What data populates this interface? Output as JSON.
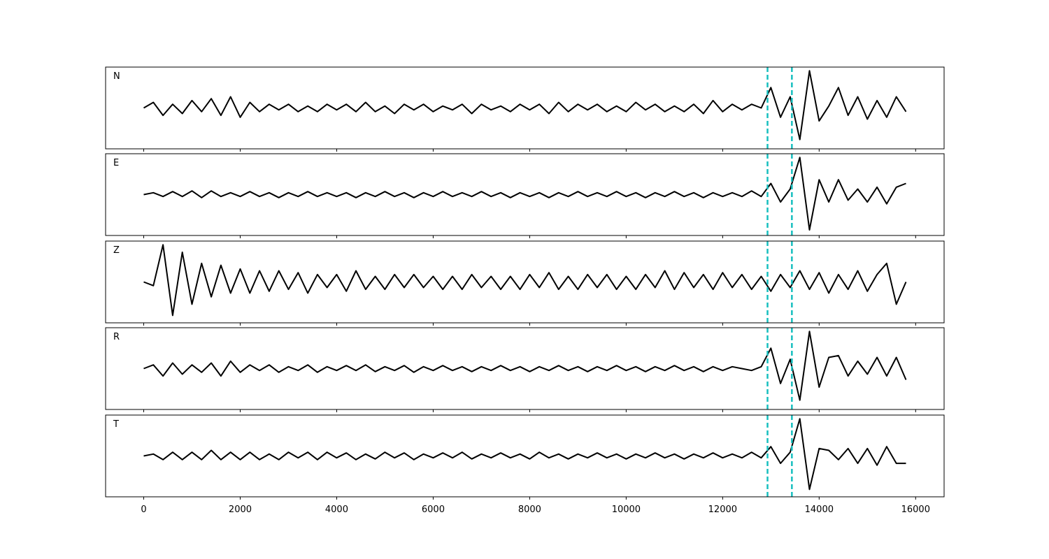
{
  "chart_data": {
    "type": "line",
    "x": [
      0,
      200,
      400,
      600,
      800,
      1000,
      1200,
      1400,
      1600,
      1800,
      2000,
      2200,
      2400,
      2600,
      2800,
      3000,
      3200,
      3400,
      3600,
      3800,
      4000,
      4200,
      4400,
      4600,
      4800,
      5000,
      5200,
      5400,
      5600,
      5800,
      6000,
      6200,
      6400,
      6600,
      6800,
      7000,
      7200,
      7400,
      7600,
      7800,
      8000,
      8200,
      8400,
      8600,
      8800,
      9000,
      9200,
      9400,
      9600,
      9800,
      10000,
      10200,
      10400,
      10600,
      10800,
      11000,
      11200,
      11400,
      11600,
      11800,
      12000,
      12200,
      12400,
      12600,
      12800,
      13000,
      13200,
      13400,
      13600,
      13800,
      14000,
      14200,
      14400,
      14600,
      14800,
      15000,
      15200,
      15400,
      15600,
      15800
    ],
    "xlim": [
      -790,
      16590
    ],
    "xticks": [
      0,
      2000,
      4000,
      6000,
      8000,
      10000,
      12000,
      14000,
      16000
    ],
    "ylim": [
      -1.1,
      1.1
    ],
    "color": "#000000",
    "markers": [
      12930,
      13435
    ],
    "marker_color": "#17bfbf",
    "panels": [
      {
        "name": "N",
        "values": [
          0.0,
          0.15,
          -0.2,
          0.1,
          -0.15,
          0.2,
          -0.1,
          0.25,
          -0.2,
          0.3,
          -0.25,
          0.15,
          -0.1,
          0.1,
          -0.05,
          0.1,
          -0.1,
          0.05,
          -0.1,
          0.1,
          -0.05,
          0.1,
          -0.1,
          0.15,
          -0.1,
          0.05,
          -0.15,
          0.1,
          -0.05,
          0.1,
          -0.1,
          0.05,
          -0.05,
          0.1,
          -0.15,
          0.1,
          -0.05,
          0.05,
          -0.1,
          0.1,
          -0.05,
          0.1,
          -0.15,
          0.15,
          -0.1,
          0.1,
          -0.05,
          0.1,
          -0.1,
          0.05,
          -0.1,
          0.15,
          -0.05,
          0.1,
          -0.1,
          0.05,
          -0.1,
          0.1,
          -0.15,
          0.2,
          -0.1,
          0.1,
          -0.05,
          0.1,
          0.0,
          0.55,
          -0.25,
          0.3,
          -0.85,
          1.0,
          -0.35,
          0.05,
          0.55,
          -0.2,
          0.3,
          -0.3,
          0.2,
          -0.25,
          0.3,
          -0.1
        ]
      },
      {
        "name": "E",
        "values": [
          0.0,
          0.05,
          -0.05,
          0.08,
          -0.05,
          0.1,
          -0.08,
          0.1,
          -0.05,
          0.05,
          -0.05,
          0.08,
          -0.05,
          0.05,
          -0.08,
          0.05,
          -0.05,
          0.08,
          -0.05,
          0.05,
          -0.05,
          0.05,
          -0.08,
          0.05,
          -0.05,
          0.08,
          -0.05,
          0.05,
          -0.08,
          0.05,
          -0.05,
          0.08,
          -0.05,
          0.05,
          -0.05,
          0.08,
          -0.05,
          0.05,
          -0.08,
          0.05,
          -0.05,
          0.05,
          -0.08,
          0.05,
          -0.05,
          0.08,
          -0.05,
          0.05,
          -0.05,
          0.08,
          -0.05,
          0.05,
          -0.08,
          0.05,
          -0.05,
          0.08,
          -0.05,
          0.05,
          -0.08,
          0.05,
          -0.05,
          0.05,
          -0.05,
          0.1,
          -0.05,
          0.3,
          -0.2,
          0.15,
          1.0,
          -0.95,
          0.4,
          -0.2,
          0.4,
          -0.15,
          0.15,
          -0.2,
          0.2,
          -0.25,
          0.2,
          0.3
        ]
      },
      {
        "name": "Z",
        "values": [
          0.0,
          -0.1,
          1.0,
          -0.9,
          0.8,
          -0.6,
          0.5,
          -0.4,
          0.45,
          -0.3,
          0.35,
          -0.3,
          0.3,
          -0.25,
          0.3,
          -0.2,
          0.25,
          -0.3,
          0.2,
          -0.15,
          0.2,
          -0.25,
          0.3,
          -0.2,
          0.15,
          -0.2,
          0.2,
          -0.15,
          0.2,
          -0.15,
          0.15,
          -0.2,
          0.15,
          -0.2,
          0.2,
          -0.15,
          0.15,
          -0.2,
          0.15,
          -0.2,
          0.2,
          -0.15,
          0.25,
          -0.2,
          0.15,
          -0.2,
          0.2,
          -0.15,
          0.2,
          -0.2,
          0.15,
          -0.2,
          0.2,
          -0.15,
          0.3,
          -0.2,
          0.25,
          -0.15,
          0.2,
          -0.2,
          0.25,
          -0.15,
          0.2,
          -0.2,
          0.15,
          -0.25,
          0.2,
          -0.15,
          0.3,
          -0.2,
          0.25,
          -0.3,
          0.2,
          -0.2,
          0.3,
          -0.25,
          0.2,
          0.5,
          -0.6,
          0.0
        ]
      },
      {
        "name": "R",
        "values": [
          0.0,
          0.1,
          -0.2,
          0.15,
          -0.15,
          0.1,
          -0.1,
          0.15,
          -0.2,
          0.2,
          -0.1,
          0.1,
          -0.05,
          0.1,
          -0.1,
          0.05,
          -0.05,
          0.1,
          -0.1,
          0.05,
          -0.05,
          0.08,
          -0.05,
          0.1,
          -0.08,
          0.05,
          -0.05,
          0.08,
          -0.1,
          0.05,
          -0.05,
          0.08,
          -0.05,
          0.05,
          -0.08,
          0.05,
          -0.05,
          0.08,
          -0.05,
          0.05,
          -0.08,
          0.05,
          -0.05,
          0.08,
          -0.05,
          0.05,
          -0.08,
          0.05,
          -0.05,
          0.08,
          -0.05,
          0.05,
          -0.08,
          0.05,
          -0.05,
          0.08,
          -0.05,
          0.05,
          -0.08,
          0.05,
          -0.05,
          0.05,
          0.0,
          -0.05,
          0.05,
          0.55,
          -0.4,
          0.25,
          -0.85,
          1.0,
          -0.5,
          0.3,
          0.35,
          -0.2,
          0.2,
          -0.15,
          0.3,
          -0.2,
          0.3,
          -0.3
        ]
      },
      {
        "name": "T",
        "values": [
          0.0,
          0.05,
          -0.1,
          0.1,
          -0.1,
          0.1,
          -0.1,
          0.15,
          -0.1,
          0.1,
          -0.1,
          0.1,
          -0.1,
          0.05,
          -0.1,
          0.1,
          -0.05,
          0.1,
          -0.1,
          0.1,
          -0.05,
          0.08,
          -0.1,
          0.05,
          -0.08,
          0.1,
          -0.05,
          0.08,
          -0.1,
          0.05,
          -0.05,
          0.08,
          -0.05,
          0.1,
          -0.08,
          0.05,
          -0.05,
          0.08,
          -0.05,
          0.05,
          -0.08,
          0.1,
          -0.05,
          0.05,
          -0.08,
          0.05,
          -0.05,
          0.08,
          -0.05,
          0.05,
          -0.08,
          0.05,
          -0.05,
          0.08,
          -0.05,
          0.05,
          -0.08,
          0.05,
          -0.05,
          0.08,
          -0.05,
          0.05,
          -0.05,
          0.1,
          -0.05,
          0.25,
          -0.2,
          0.1,
          1.0,
          -0.9,
          0.2,
          0.15,
          -0.1,
          0.2,
          -0.2,
          0.2,
          -0.25,
          0.25,
          -0.2,
          -0.2
        ]
      }
    ]
  }
}
